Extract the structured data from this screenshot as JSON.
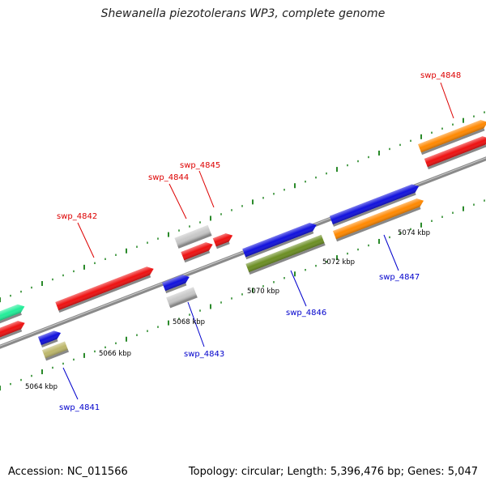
{
  "title": "Shewanella piezotolerans WP3, complete genome",
  "footer": {
    "accession": "Accession: NC_011566",
    "summary": "Topology: circular; Length: 5,396,476 bp; Genes: 5,047"
  },
  "colors": {
    "backbone": "#8a8a8a",
    "ticks": "#2a8a2a",
    "label_top": "#dd0000",
    "label_bottom": "#0000cc",
    "red": "#ee1111",
    "blue": "#1111dd",
    "orange": "#ff8800",
    "olive": "#6b8e23",
    "khaki": "#bdb76b",
    "gray": "#c8c8c8",
    "teal": "#22ee99"
  },
  "kbp_labels": [
    "5064 kbp",
    "5066 kbp",
    "5068 kbp",
    "5070 kbp",
    "5072 kbp",
    "5074 kbp"
  ],
  "gene_labels": {
    "swp_4841": "swp_4841",
    "swp_4842": "swp_4842",
    "swp_4843": "swp_4843",
    "swp_4844": "swp_4844",
    "swp_4845": "swp_4845",
    "swp_4846": "swp_4846",
    "swp_4847": "swp_4847",
    "swp_4848": "swp_4848"
  }
}
